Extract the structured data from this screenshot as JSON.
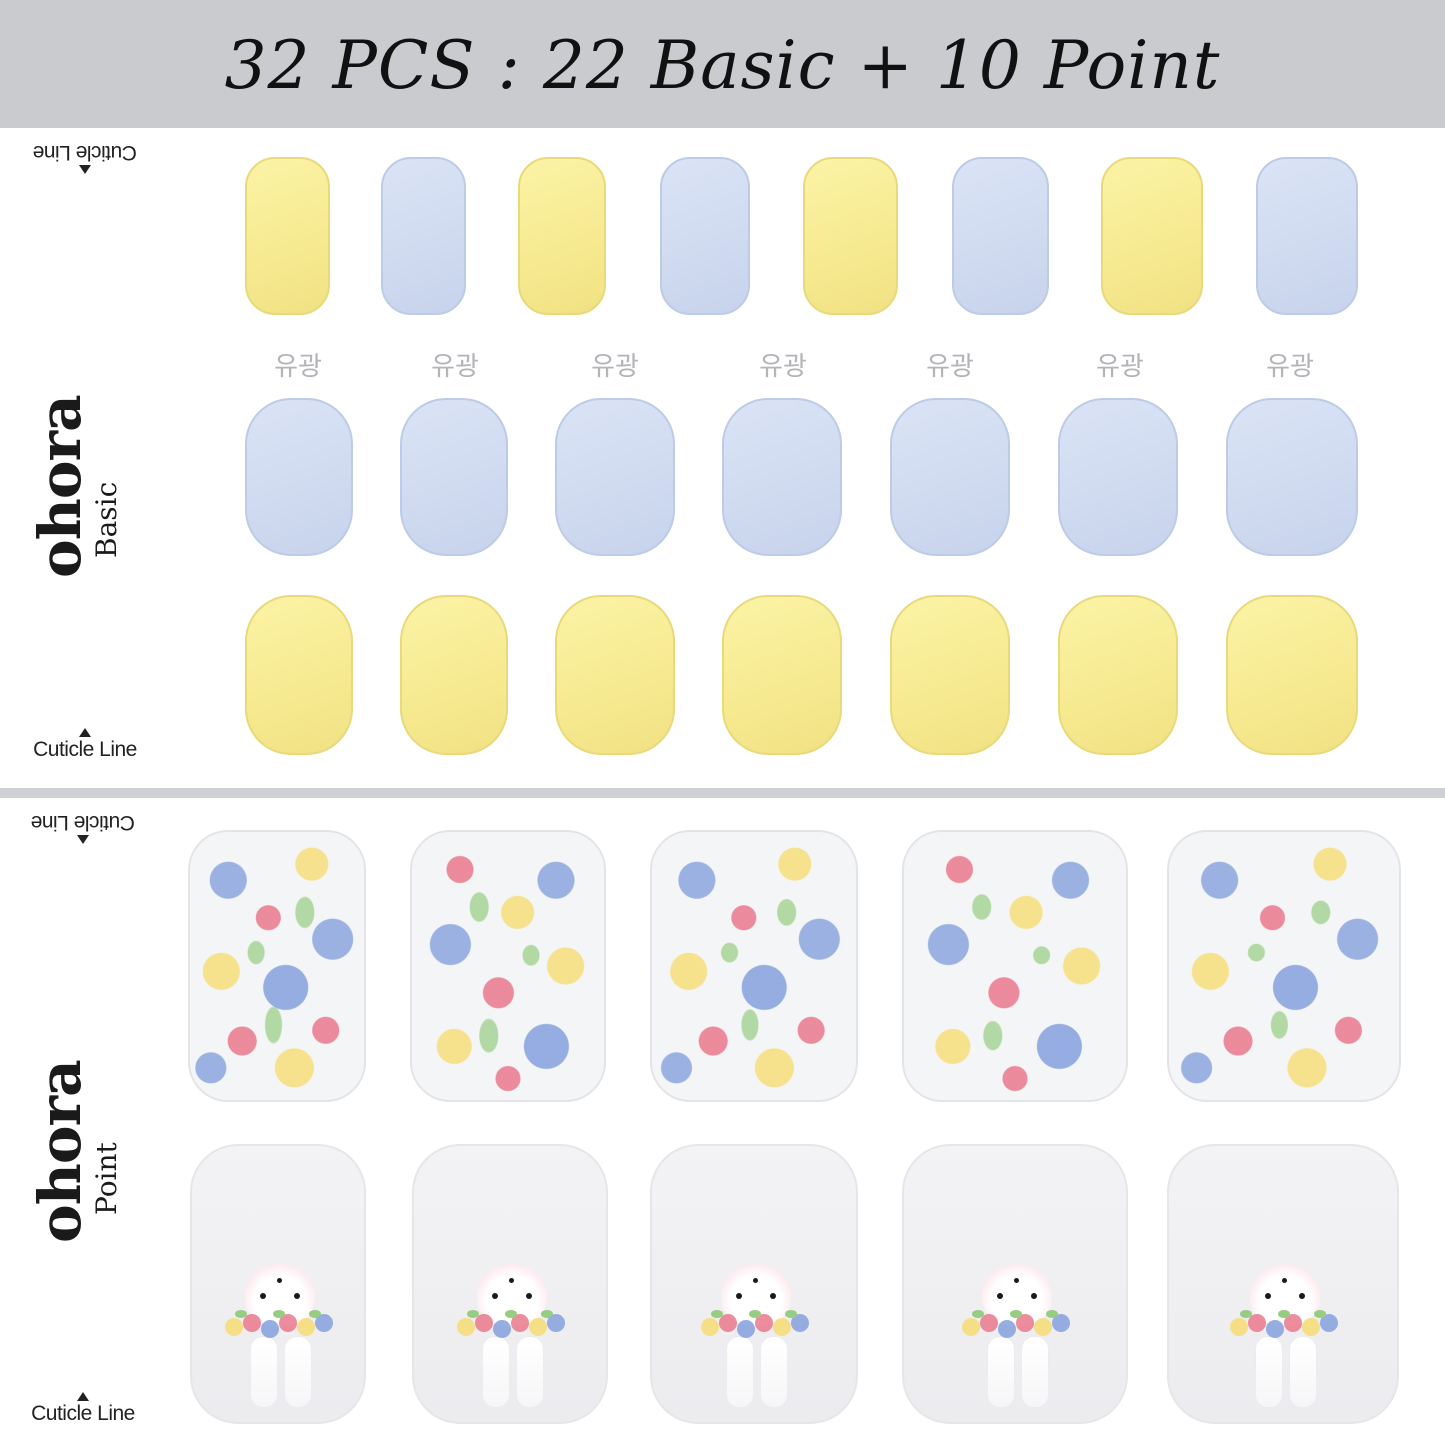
{
  "banner": {
    "title": "32 PCS : 22 Basic + 10 Point"
  },
  "basic_sheet": {
    "brand_name": "ohora",
    "brand_type": "Basic",
    "cuticle_top": "Cuticle Line",
    "cuticle_bottom": "Cuticle Line",
    "gloss_labels": [
      "유광",
      "유광",
      "유광",
      "유광",
      "유광",
      "유광",
      "유광"
    ],
    "row1_colors": [
      "yellow",
      "blue",
      "yellow",
      "blue",
      "yellow",
      "blue",
      "yellow",
      "blue"
    ],
    "row2_colors": [
      "blue",
      "blue",
      "blue",
      "blue",
      "blue",
      "blue",
      "blue"
    ],
    "row3_colors": [
      "yellow",
      "yellow",
      "yellow",
      "yellow",
      "yellow",
      "yellow",
      "yellow"
    ],
    "palette": {
      "yellow": "#f6e98f",
      "blue": "#cfdaf0"
    }
  },
  "point_sheet": {
    "brand_name": "ohora",
    "brand_type": "Point",
    "cuticle_top": "Cuticle Line",
    "cuticle_bottom": "Cuticle Line",
    "row1_design": [
      "floral",
      "floral",
      "floral",
      "floral",
      "floral"
    ],
    "row2_design": [
      "bunny-with-bouquet",
      "bunny-with-bouquet",
      "bunny-with-bouquet",
      "bunny-with-bouquet",
      "bunny-with-bouquet"
    ],
    "palette": {
      "rose": "#e9788c",
      "blue_flower": "#84a0dd",
      "yellow_flower": "#f6dc73",
      "leaf": "#96cd82"
    }
  }
}
